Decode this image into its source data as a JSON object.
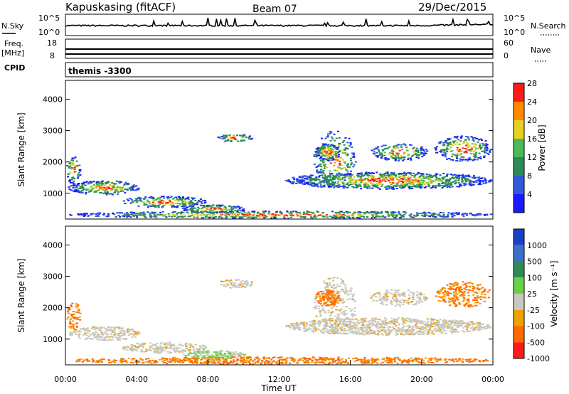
{
  "header": {
    "station": "Kapuskasing (fitACF)",
    "beam": "Beam 07",
    "date": "29/Dec/2015"
  },
  "noise_panel": {
    "left_label": "N.Sky",
    "right_label": "N.Search",
    "left_ticks": [
      "10^5",
      "10^0"
    ],
    "right_ticks": [
      "10^5",
      "10^0"
    ]
  },
  "freq_panel": {
    "left_label_line1": "Freq.",
    "left_label_line2": "[MHz]",
    "right_label": "Nave",
    "left_ticks": [
      "18",
      "8"
    ],
    "right_ticks": [
      "60",
      "0"
    ],
    "cpid_label": "CPID",
    "cpid_value": "themis -3300"
  },
  "chart_data": [
    {
      "type": "heatmap",
      "name": "power",
      "ylabel": "Slant Range [km]",
      "xlabel": "",
      "yticks": [
        1000,
        2000,
        3000,
        4000
      ],
      "ylim": [
        180,
        4600
      ],
      "colorbar_label": "Power [dB]",
      "colorbar_ticks": [
        "4",
        "8",
        "12",
        "16",
        "20",
        "24",
        "28"
      ],
      "colorbar_colors": [
        "#1a1aff",
        "#2f5bd6",
        "#2e8b57",
        "#4cbb55",
        "#e8d020",
        "#ff8c00",
        "#ff1a1a"
      ]
    },
    {
      "type": "heatmap",
      "name": "velocity",
      "ylabel": "Slant Range [km]",
      "xlabel": "Time UT",
      "xticks": [
        "00:00",
        "04:00",
        "08:00",
        "12:00",
        "16:00",
        "20:00",
        "00:00"
      ],
      "yticks": [
        1000,
        2000,
        3000,
        4000
      ],
      "ylim": [
        180,
        4600
      ],
      "colorbar_label": "Velocity [m s⁻¹]",
      "colorbar_ticks": [
        "1000",
        "500",
        "100",
        "25",
        "-25",
        "-100",
        "-500",
        "-1000"
      ],
      "colorbar_colors": [
        "#1a3fc8",
        "#3a70c8",
        "#2e8b57",
        "#6bd04a",
        "#c8c8c0",
        "#f0a000",
        "#ff6a00",
        "#ff1a1a"
      ]
    }
  ]
}
